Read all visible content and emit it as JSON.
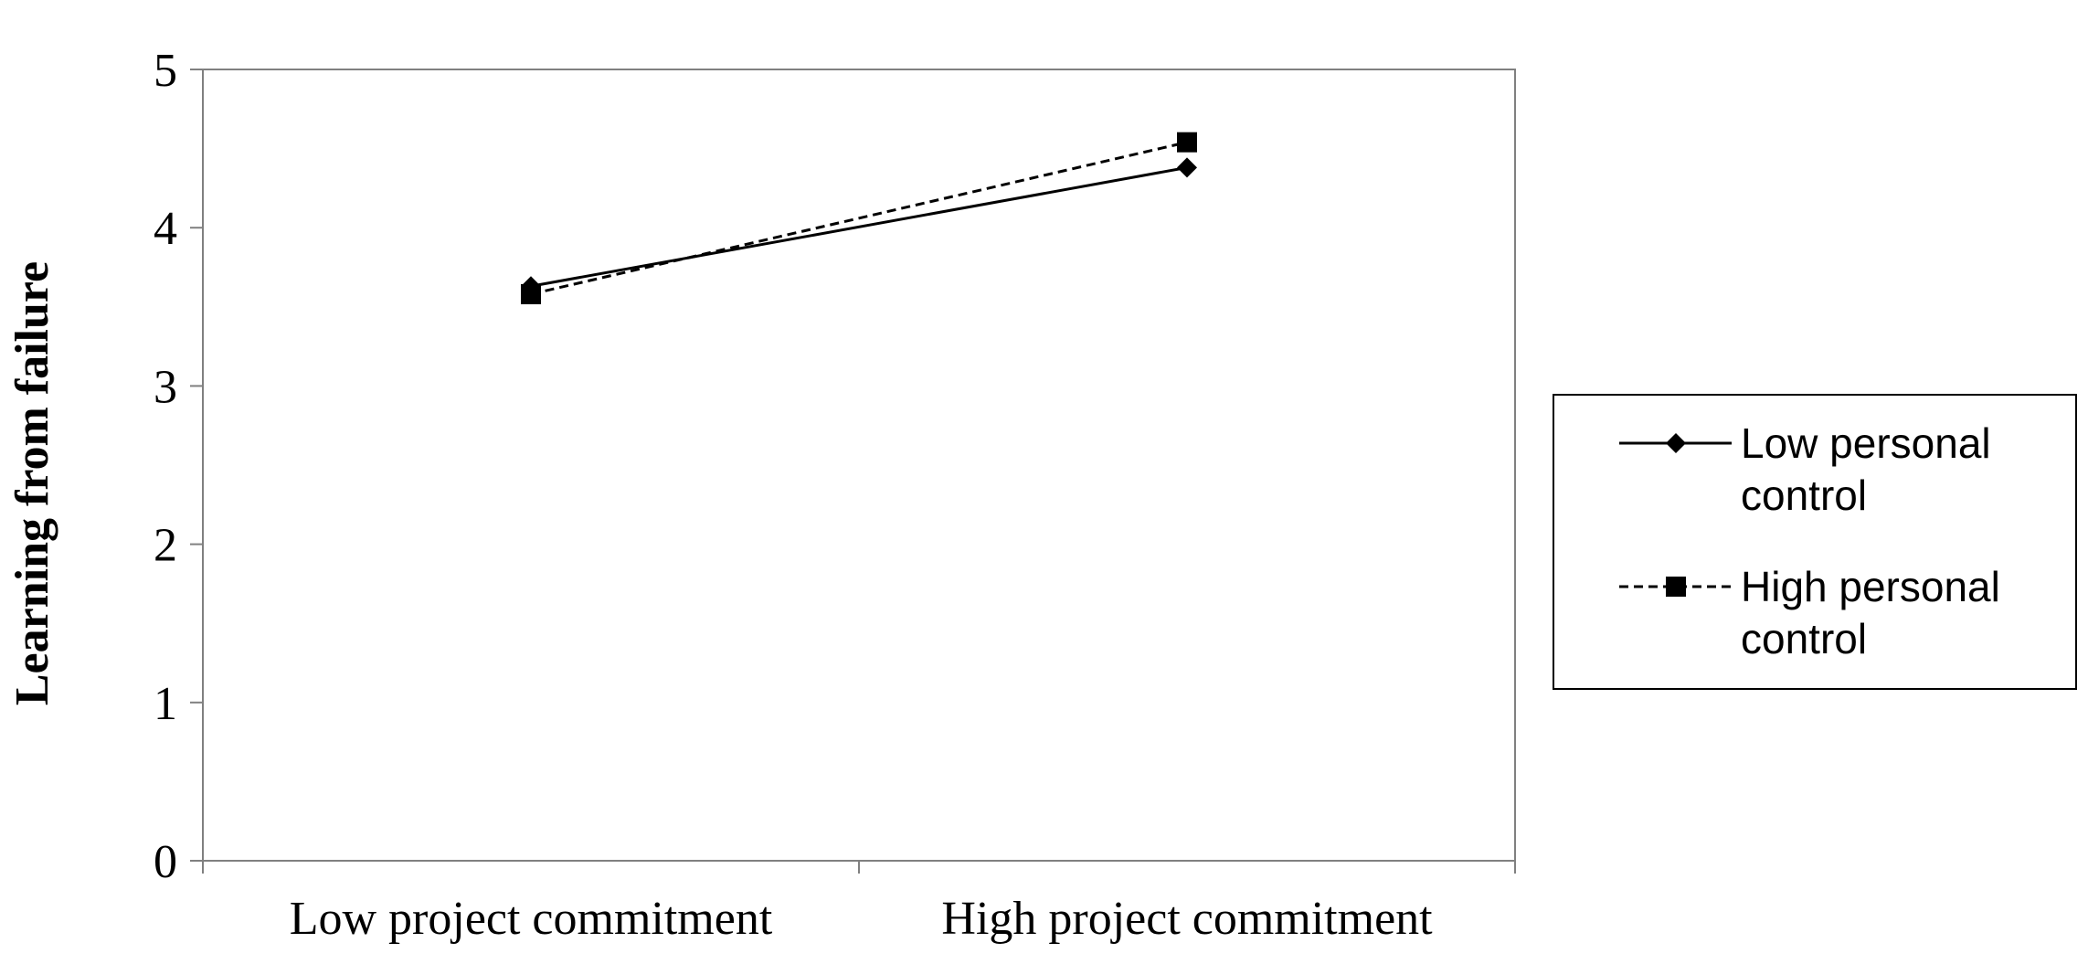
{
  "chart_data": {
    "type": "line",
    "title": "",
    "xlabel": "",
    "ylabel": "Learning from failure",
    "categories": [
      "Low project commitment",
      "High project commitment"
    ],
    "ylim": [
      0,
      5
    ],
    "yticks": [
      "0",
      "1",
      "2",
      "3",
      "4",
      "5"
    ],
    "grid": false,
    "legend_position": "right",
    "series": [
      {
        "name_lines": [
          "Low personal control"
        ],
        "name_line1": "Low personal",
        "name_line2": "control",
        "values": [
          3.63,
          4.38
        ],
        "line_style": "solid",
        "marker": "diamond",
        "color": "#000000"
      },
      {
        "name_line1": "High personal",
        "name_line2": "control",
        "values": [
          3.58,
          4.54
        ],
        "line_style": "dashed",
        "marker": "square",
        "color": "#000000"
      }
    ]
  }
}
